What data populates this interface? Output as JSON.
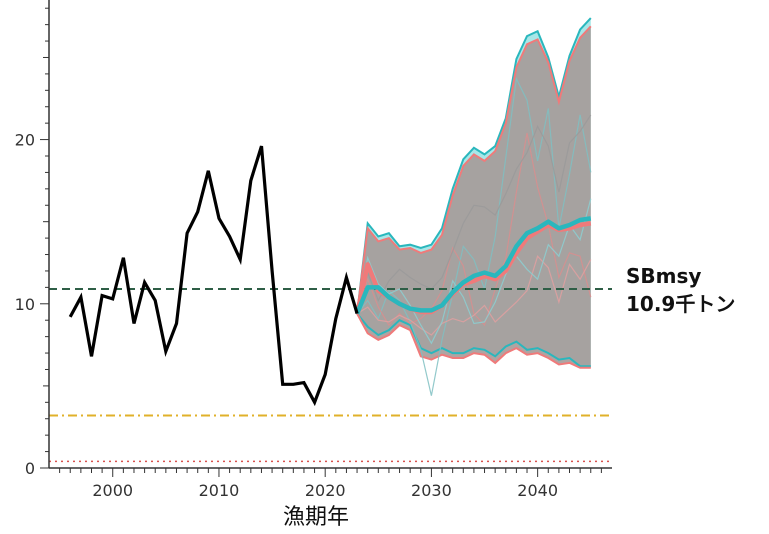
{
  "chart_data": {
    "type": "line",
    "title": "",
    "xlabel": "漁期年",
    "ylabel": "",
    "xlim": [
      1994,
      2047
    ],
    "ylim": [
      0,
      28.5
    ],
    "x_ticks": [
      "2000",
      "2010",
      "2020",
      "2030",
      "2040"
    ],
    "y_ticks": [
      "0",
      "10",
      "20"
    ],
    "historical": {
      "x": [
        1996,
        1997,
        1998,
        1999,
        2000,
        2001,
        2002,
        2003,
        2004,
        2005,
        2006,
        2007,
        2008,
        2009,
        2010,
        2011,
        2012,
        2013,
        2014,
        2015,
        2016,
        2017,
        2018,
        2019,
        2020,
        2021,
        2022,
        2023
      ],
      "y": [
        9.2,
        10.4,
        6.8,
        10.5,
        10.3,
        12.8,
        8.8,
        11.3,
        10.2,
        7.1,
        8.8,
        14.3,
        15.6,
        18.1,
        15.2,
        14.1,
        12.7,
        17.5,
        19.6,
        12.0,
        5.1,
        5.1,
        5.2,
        4.0,
        5.7,
        9.1,
        11.6,
        9.4
      ]
    },
    "projection_x": [
      2023,
      2024,
      2025,
      2026,
      2027,
      2028,
      2029,
      2030,
      2031,
      2032,
      2033,
      2034,
      2035,
      2036,
      2037,
      2038,
      2039,
      2040,
      2041,
      2042,
      2043,
      2044,
      2045
    ],
    "projection_series": [
      {
        "color": "#2ab7bd",
        "median": [
          9.4,
          11.0,
          11.0,
          10.4,
          10.0,
          9.7,
          9.6,
          9.6,
          9.9,
          10.7,
          11.3,
          11.7,
          11.9,
          11.7,
          12.3,
          13.5,
          14.3,
          14.6,
          15.0,
          14.6,
          14.8,
          15.1,
          15.2
        ],
        "upper": [
          9.4,
          14.9,
          14.1,
          14.3,
          13.5,
          13.6,
          13.4,
          13.6,
          14.6,
          17.0,
          18.8,
          19.5,
          19.1,
          19.6,
          21.3,
          24.9,
          26.3,
          26.6,
          25.0,
          22.6,
          25.1,
          26.7,
          27.4
        ],
        "lower": [
          9.4,
          8.6,
          8.1,
          8.4,
          9.0,
          8.7,
          7.3,
          7.0,
          7.3,
          7.0,
          7.0,
          7.3,
          7.2,
          6.8,
          7.4,
          7.7,
          7.2,
          7.3,
          7.0,
          6.6,
          6.7,
          6.2,
          6.2
        ]
      },
      {
        "color": "#f07a7a",
        "median": [
          9.4,
          12.4,
          10.8,
          10.4,
          10.0,
          9.7,
          9.5,
          9.5,
          9.9,
          10.6,
          11.2,
          11.4,
          11.7,
          11.5,
          12.0,
          13.1,
          14.0,
          14.4,
          14.8,
          14.5,
          14.6,
          14.8,
          14.9
        ],
        "upper": [
          9.4,
          14.6,
          13.8,
          14.0,
          13.3,
          13.4,
          13.1,
          13.3,
          14.2,
          16.6,
          18.4,
          19.1,
          18.7,
          19.3,
          21.0,
          24.4,
          25.8,
          26.1,
          24.7,
          22.3,
          24.8,
          26.2,
          26.9
        ],
        "lower": [
          9.4,
          8.2,
          7.8,
          8.1,
          8.7,
          8.4,
          6.8,
          6.6,
          6.9,
          6.7,
          6.7,
          7.0,
          6.9,
          6.4,
          7.0,
          7.3,
          6.9,
          7.0,
          6.7,
          6.3,
          6.4,
          6.1,
          6.1
        ]
      }
    ],
    "sample_paths": [
      [
        9.4,
        10.2,
        9.1,
        10.8,
        10.2,
        8.9,
        7.2,
        4.4,
        7.8,
        10.6,
        13.5,
        12.7,
        10.9,
        14.1,
        18.9,
        23.7,
        22.4,
        18.7,
        21.9,
        14.6,
        17.9,
        21.5,
        18.0
      ],
      [
        9.4,
        11.5,
        9.8,
        8.7,
        9.4,
        8.8,
        9.1,
        9.7,
        10.8,
        13.4,
        12.3,
        9.4,
        8.7,
        10.9,
        12.8,
        16.8,
        20.4,
        17.1,
        14.8,
        11.6,
        13.1,
        12.9,
        10.4
      ],
      [
        9.4,
        11.9,
        10.2,
        11.4,
        12.1,
        11.6,
        11.2,
        10.9,
        11.6,
        13.2,
        14.9,
        16.0,
        15.9,
        15.4,
        16.7,
        18.2,
        19.2,
        20.8,
        19.6,
        16.8,
        19.8,
        20.5,
        21.5
      ],
      [
        9.4,
        9.8,
        9.0,
        8.9,
        9.3,
        9.0,
        8.5,
        8.1,
        8.8,
        9.1,
        8.9,
        9.3,
        9.9,
        8.9,
        9.5,
        10.1,
        10.8,
        12.9,
        12.2,
        10.1,
        12.4,
        11.5,
        12.7
      ],
      [
        9.4,
        12.8,
        11.2,
        10.6,
        10.9,
        9.9,
        8.7,
        7.6,
        8.9,
        11.4,
        10.4,
        8.8,
        8.9,
        10.1,
        11.8,
        12.9,
        12.1,
        11.5,
        13.6,
        12.9,
        14.8,
        13.9,
        16.4
      ]
    ],
    "reference_lines": [
      {
        "name": "SBmsy",
        "label_line1": "SBmsy",
        "label_line2": "10.9千トン",
        "value": 10.9,
        "color": "#2e5e46",
        "style": "dashed"
      },
      {
        "value": 3.2,
        "color": "#e0b12a",
        "style": "dash-dot"
      },
      {
        "value": 0.4,
        "color": "#d9534f",
        "style": "dotted"
      }
    ],
    "grid": false,
    "legend": "none",
    "band_fill": "#a69a98"
  }
}
